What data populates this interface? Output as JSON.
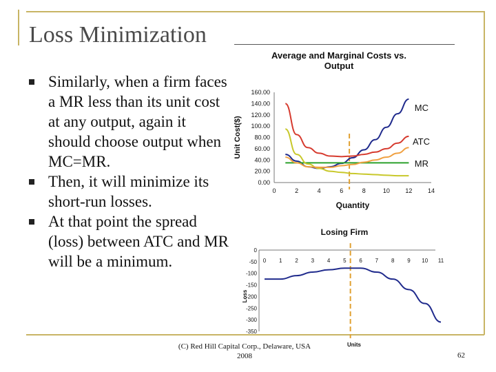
{
  "slide": {
    "title": "Loss Minimization",
    "bullets": [
      "Similarly, when a firm faces a MR less than its unit cost at any output, again it should choose output when MC=MR.",
      "Then, it will minimize its short-run losses.",
      "At that point the spread (loss) between ATC and MR will be a minimum."
    ],
    "footer_line1": "(C) Red Hill Capital Corp., Delaware, USA",
    "footer_line2": "2008",
    "page_number": "62",
    "frame_color": "#c8b464"
  },
  "chart_data": [
    {
      "type": "line",
      "title": "Average and Marginal Costs vs. Output",
      "xlabel": "Quantity",
      "ylabel": "Unit Cost($)",
      "xlim": [
        0,
        14
      ],
      "ylim": [
        0,
        160
      ],
      "x_ticks": [
        "0",
        "2",
        "4",
        "6",
        "8",
        "10",
        "12",
        "14"
      ],
      "y_ticks": [
        "0.00",
        "20.00",
        "40.00",
        "60.00",
        "80.00",
        "100.00",
        "120.00",
        "140.00",
        "160.00"
      ],
      "marker_x": 6.7,
      "series": [
        {
          "name": "MC",
          "color": "#1f2a8c",
          "x": [
            1,
            2,
            3,
            4,
            5,
            6,
            7,
            8,
            9,
            10,
            11,
            12
          ],
          "y": [
            50,
            38,
            28,
            25,
            28,
            34,
            44,
            58,
            76,
            98,
            122,
            148
          ]
        },
        {
          "name": "ATC",
          "color": "#d63a2e",
          "x": [
            1,
            2,
            3,
            4,
            5,
            6,
            7,
            8,
            9,
            10,
            11,
            12
          ],
          "y": [
            140,
            85,
            62,
            52,
            47,
            46,
            47,
            50,
            54,
            60,
            70,
            82
          ]
        },
        {
          "name": "MR",
          "color": "#2aa02a",
          "x": [
            1,
            12
          ],
          "y": [
            35,
            35
          ]
        },
        {
          "name": "",
          "color": "#c8c82a",
          "x": [
            1,
            2,
            3,
            4,
            5,
            6,
            7,
            8,
            9,
            10,
            11,
            12
          ],
          "y": [
            95,
            50,
            33,
            25,
            20,
            18,
            16,
            15,
            14,
            13,
            12,
            12
          ]
        },
        {
          "name": "",
          "color": "#f0a040",
          "x": [
            1,
            2,
            3,
            4,
            5,
            6,
            7,
            8,
            9,
            10,
            11,
            12
          ],
          "y": [
            45,
            35,
            28,
            27,
            27,
            30,
            32,
            36,
            40,
            45,
            52,
            62
          ]
        }
      ]
    },
    {
      "type": "line",
      "title": "Losing Firm",
      "xlabel": "Units",
      "ylabel": "Loss",
      "xlim": [
        0,
        11
      ],
      "ylim": [
        -350,
        0
      ],
      "x_ticks": [
        "0",
        "1",
        "2",
        "3",
        "4",
        "5",
        "6",
        "7",
        "8",
        "9",
        "10",
        "11"
      ],
      "y_ticks": [
        "0",
        "-50",
        "-100",
        "-150",
        "-200",
        "-250",
        "-300",
        "-350"
      ],
      "marker_x": 5.7,
      "series": [
        {
          "name": "",
          "color": "#1f2a8c",
          "x": [
            0,
            1,
            2,
            3,
            4,
            5,
            6,
            7,
            8,
            9,
            10,
            11
          ],
          "y": [
            -125,
            -125,
            -110,
            -95,
            -85,
            -78,
            -78,
            -95,
            -125,
            -170,
            -230,
            -310
          ]
        }
      ]
    }
  ]
}
